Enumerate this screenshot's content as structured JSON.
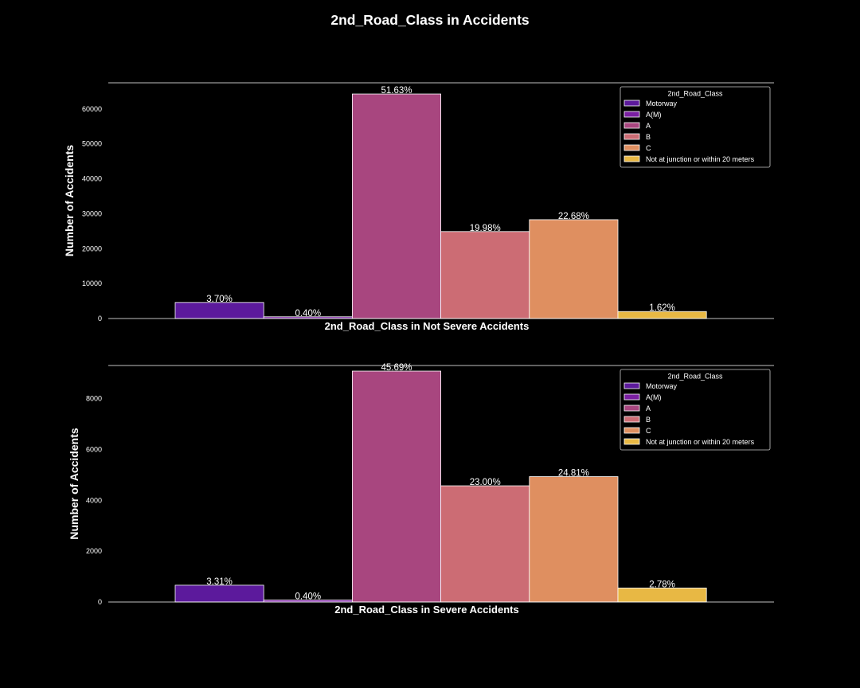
{
  "title": "2nd_Road_Class in Accidents",
  "chart_data": [
    {
      "type": "bar",
      "xlabel": "2nd_Road_Class in Not Severe Accidents",
      "ylabel": "Number of Accidents",
      "ylim": [
        0,
        67500
      ],
      "yticks": [
        0,
        10000,
        20000,
        30000,
        40000,
        50000,
        60000
      ],
      "categories": [
        "Motorway",
        "A(M)",
        "A",
        "B",
        "C",
        "Not at junction or within 20 meters"
      ],
      "values": [
        4600,
        500,
        64300,
        24900,
        28300,
        2000
      ],
      "labels": [
        "3.70%",
        "0.40%",
        "51.63%",
        "19.98%",
        "22.68%",
        "1.62%"
      ],
      "legend_title": "2nd_Road_Class",
      "legend_position": "top-right",
      "grid": false
    },
    {
      "type": "bar",
      "xlabel": "2nd_Road_Class in Severe Accidents",
      "ylabel": "Number of Accidents",
      "ylim": [
        0,
        9300
      ],
      "yticks": [
        0,
        2000,
        4000,
        6000,
        8000
      ],
      "categories": [
        "Motorway",
        "A(M)",
        "A",
        "B",
        "C",
        "Not at junction or within 20 meters"
      ],
      "values": [
        660,
        80,
        9080,
        4570,
        4930,
        550
      ],
      "labels": [
        "3.31%",
        "0.40%",
        "45.69%",
        "23.00%",
        "24.81%",
        "2.78%"
      ],
      "legend_title": "2nd_Road_Class",
      "legend_position": "top-right",
      "grid": false
    }
  ],
  "colors": [
    "#5c1a9c",
    "#7a1fa2",
    "#a8467f",
    "#cc6c74",
    "#df8f60",
    "#e8b844"
  ]
}
